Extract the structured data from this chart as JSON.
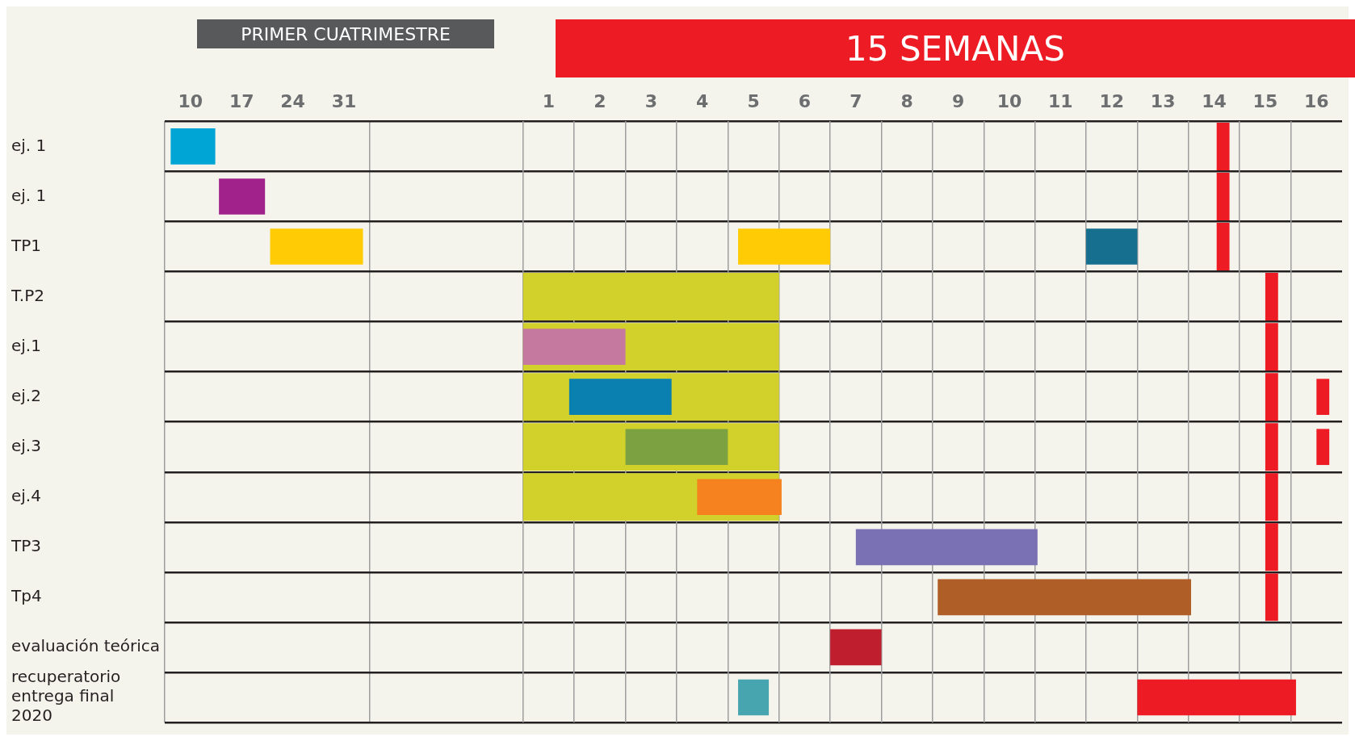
{
  "chart_data": {
    "type": "bar",
    "orientation": "horizontal",
    "annotations": [
      "PRIMER CUATRIMESTRE",
      "15 SEMANAS"
    ],
    "categories": [
      "ej. 1",
      "ej. 1",
      "TP1",
      "T.P2",
      "ej.1",
      "ej.2",
      "ej.3",
      "ej.4",
      "TP3",
      "Tp4",
      "evaluación teórica",
      "recuperatorio\nentrega final\n2020"
    ],
    "xlim": [
      6.5,
      167.5
    ],
    "xticks": [
      {
        "value": 6.5,
        "label": null
      },
      10,
      17,
      24,
      31,
      {
        "value": 34.5,
        "label": null
      }
    ],
    "x2lim": [
      -6.5,
      16.5
    ],
    "x2ticks": [
      {
        "value": 0.5,
        "label": null
      },
      1,
      {
        "value": 1.5,
        "label": null
      },
      2,
      {
        "value": 2.5,
        "label": null
      },
      3,
      {
        "value": 3.5,
        "label": null
      },
      4,
      {
        "value": 4.5,
        "label": null
      },
      5,
      {
        "value": 5.5,
        "label": null
      },
      6,
      {
        "value": 6.5,
        "label": null
      },
      7,
      {
        "value": 7.5,
        "label": null
      },
      8,
      {
        "value": 8.5,
        "label": null
      },
      9,
      {
        "value": 9.5,
        "label": null
      },
      10,
      {
        "value": 10.5,
        "label": null
      },
      11,
      {
        "value": 11.5,
        "label": null
      },
      12,
      {
        "value": 12.5,
        "label": null
      },
      13,
      {
        "value": 13.5,
        "label": null
      },
      14,
      {
        "value": 14.5,
        "label": null
      },
      15,
      {
        "value": 15.5,
        "label": null
      },
      16
    ],
    "grid": true,
    "series": [
      {
        "color": "#d2d02a",
        "axis": "x2",
        "base": [
          null,
          null,
          null,
          0.5,
          0.5,
          0.5,
          0.5,
          0.5,
          null,
          null,
          null,
          null
        ],
        "values": [
          null,
          null,
          null,
          5,
          5,
          5,
          5,
          5,
          null,
          null,
          null,
          null
        ]
      },
      {
        "color": "#00a5d5",
        "base": [
          7.3,
          null,
          null,
          null,
          null,
          null,
          null,
          null,
          null,
          null,
          null,
          null
        ],
        "values": [
          6.1,
          null,
          null,
          null,
          null,
          null,
          null,
          null,
          null,
          null,
          null,
          null
        ]
      },
      {
        "color": "#a0228a",
        "base": [
          null,
          13.9,
          null,
          null,
          null,
          null,
          null,
          null,
          null,
          null,
          null,
          null
        ],
        "values": [
          null,
          6.3,
          null,
          null,
          null,
          null,
          null,
          null,
          null,
          null,
          null,
          null
        ]
      },
      {
        "color": "#ffcb05",
        "base": [
          null,
          null,
          20.9,
          null,
          null,
          null,
          null,
          null,
          null,
          null,
          null,
          null
        ],
        "values": [
          null,
          null,
          12.7,
          null,
          null,
          null,
          null,
          null,
          null,
          null,
          null,
          null
        ]
      },
      {
        "color": "#ffcb05",
        "axis": "x2",
        "base": [
          null,
          null,
          4.7,
          null,
          null,
          null,
          null,
          null,
          null,
          null,
          null,
          null
        ],
        "values": [
          null,
          null,
          1.8,
          null,
          null,
          null,
          null,
          null,
          null,
          null,
          null,
          null
        ]
      },
      {
        "color": "#166f8f",
        "axis": "x2",
        "base": [
          null,
          null,
          11.5,
          null,
          null,
          null,
          null,
          null,
          null,
          null,
          null,
          null
        ],
        "values": [
          null,
          null,
          1,
          null,
          null,
          null,
          null,
          null,
          null,
          null,
          null,
          null
        ]
      },
      {
        "color": "#c6799e",
        "axis": "x2",
        "base": [
          null,
          null,
          null,
          null,
          0.5,
          null,
          null,
          null,
          null,
          null,
          null,
          null
        ],
        "values": [
          null,
          null,
          null,
          null,
          2,
          null,
          null,
          null,
          null,
          null,
          null,
          null
        ]
      },
      {
        "color": "#0a80b0",
        "axis": "x2",
        "base": [
          null,
          null,
          null,
          null,
          null,
          1.4,
          null,
          null,
          null,
          null,
          null,
          null
        ],
        "values": [
          null,
          null,
          null,
          null,
          null,
          2,
          null,
          null,
          null,
          null,
          null,
          null
        ]
      },
      {
        "color": "#7ba141",
        "axis": "x2",
        "base": [
          null,
          null,
          null,
          null,
          null,
          null,
          2.5,
          null,
          null,
          null,
          null,
          null
        ],
        "values": [
          null,
          null,
          null,
          null,
          null,
          null,
          2,
          null,
          null,
          null,
          null,
          null
        ]
      },
      {
        "color": "#f5821f",
        "axis": "x2",
        "base": [
          null,
          null,
          null,
          null,
          null,
          null,
          null,
          3.9,
          null,
          null,
          null,
          null
        ],
        "values": [
          null,
          null,
          null,
          null,
          null,
          null,
          null,
          1.65,
          null,
          null,
          null,
          null
        ]
      },
      {
        "color": "#7971b4",
        "axis": "x2",
        "base": [
          null,
          null,
          null,
          null,
          null,
          null,
          null,
          null,
          7,
          null,
          null,
          null
        ],
        "values": [
          null,
          null,
          null,
          null,
          null,
          null,
          null,
          null,
          3.55,
          null,
          null,
          null
        ]
      },
      {
        "color": "#b05e28",
        "axis": "x2",
        "base": [
          null,
          null,
          null,
          null,
          null,
          null,
          null,
          null,
          null,
          8.6,
          null,
          null
        ],
        "values": [
          null,
          null,
          null,
          null,
          null,
          null,
          null,
          null,
          null,
          4.95,
          null,
          null
        ]
      },
      {
        "color": "#be1e2d",
        "axis": "x2",
        "base": [
          null,
          null,
          null,
          null,
          null,
          null,
          null,
          null,
          null,
          null,
          6.5,
          null
        ],
        "values": [
          null,
          null,
          null,
          null,
          null,
          null,
          null,
          null,
          null,
          null,
          1,
          null
        ]
      },
      {
        "color": "#47a5b0",
        "axis": "x2",
        "base": [
          null,
          null,
          null,
          null,
          null,
          null,
          null,
          null,
          null,
          null,
          null,
          4.7
        ],
        "values": [
          null,
          null,
          null,
          null,
          null,
          null,
          null,
          null,
          null,
          null,
          null,
          0.6
        ]
      },
      {
        "color": "#ed1c24",
        "axis": "x2",
        "base": [
          null,
          null,
          null,
          null,
          null,
          null,
          null,
          null,
          null,
          null,
          null,
          12.5
        ],
        "values": [
          null,
          null,
          null,
          null,
          null,
          null,
          null,
          null,
          null,
          null,
          null,
          3.1
        ]
      },
      {
        "color": "#ed1c24",
        "axis": "x2",
        "base": [
          14.05,
          14.05,
          14.05,
          15,
          15,
          15,
          15,
          15,
          15,
          15,
          null,
          null
        ],
        "values": [
          0.25,
          0.25,
          0.25,
          0.25,
          0.25,
          0.25,
          0.25,
          0.25,
          0.25,
          0.25,
          null,
          null
        ]
      },
      {
        "color": "#ed1c24",
        "axis": "x2",
        "base": [
          null,
          null,
          null,
          null,
          null,
          16,
          16,
          null,
          null,
          null,
          null,
          null
        ],
        "values": [
          null,
          null,
          null,
          null,
          null,
          0.25,
          0.25,
          null,
          null,
          null,
          null,
          null
        ]
      }
    ]
  }
}
